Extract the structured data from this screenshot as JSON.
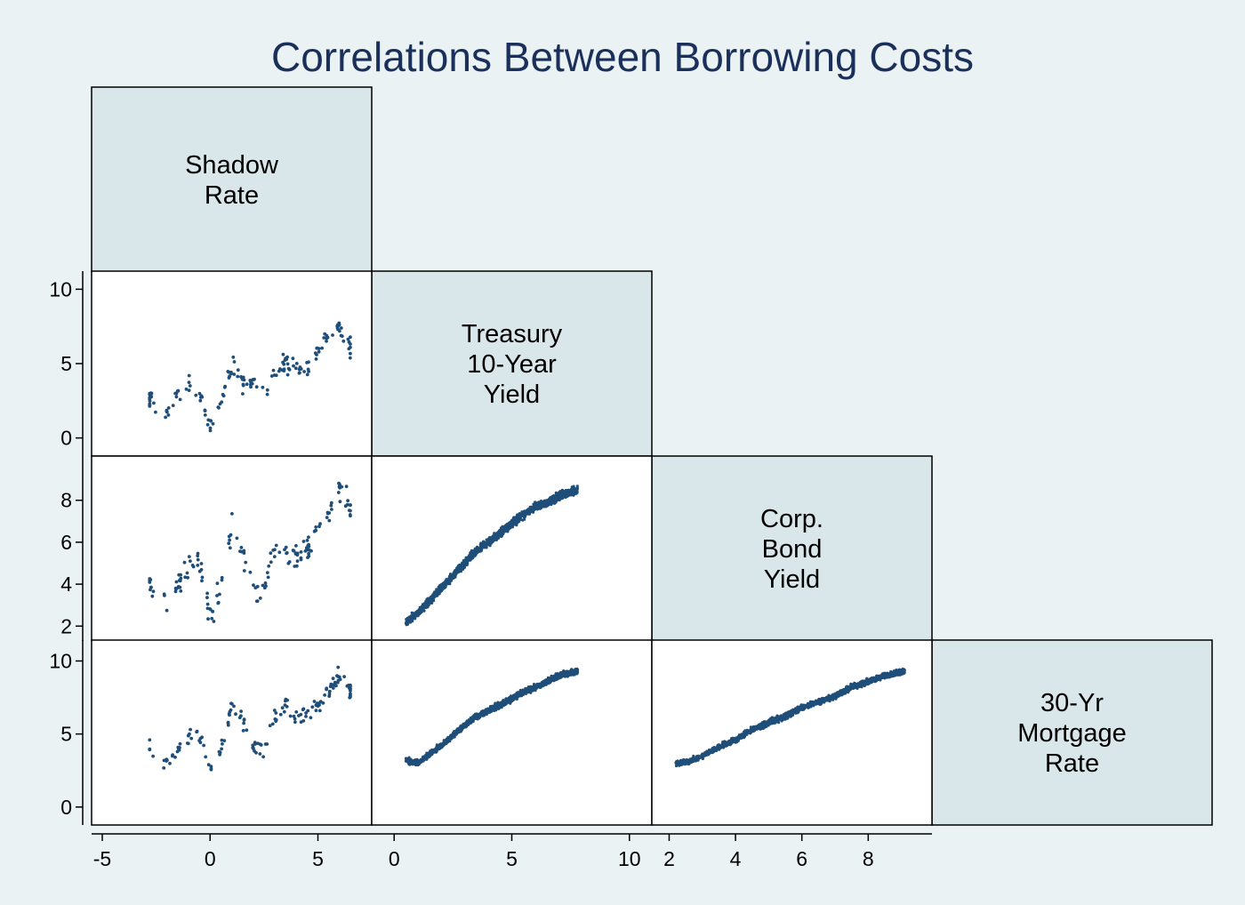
{
  "chart_data": {
    "type": "scatter",
    "kind": "scatter-matrix",
    "title": "Correlations Between Borrowing Costs",
    "variables": [
      {
        "key": "shadow",
        "label_lines": [
          "Shadow",
          "Rate"
        ],
        "range": [
          -5,
          7
        ]
      },
      {
        "key": "treasury",
        "label_lines": [
          "Treasury",
          "10-Year",
          "Yield"
        ],
        "range": [
          -0.5,
          10.5
        ]
      },
      {
        "key": "corp",
        "label_lines": [
          "Corp.",
          "Bond",
          "Yield"
        ],
        "range": [
          1.8,
          9.6
        ]
      },
      {
        "key": "mortgage",
        "label_lines": [
          "30-Yr",
          "Mortgage",
          "Rate"
        ],
        "range": [
          -0.5,
          10.7
        ]
      }
    ],
    "y_ticks": {
      "treasury": [
        {
          "v": 0,
          "label": "0"
        },
        {
          "v": 5,
          "label": "5"
        },
        {
          "v": 10,
          "label": "10"
        }
      ],
      "corp": [
        {
          "v": 2,
          "label": "2"
        },
        {
          "v": 4,
          "label": "4"
        },
        {
          "v": 6,
          "label": "6"
        },
        {
          "v": 8,
          "label": "8"
        }
      ],
      "mortgage": [
        {
          "v": 0,
          "label": "0"
        },
        {
          "v": 5,
          "label": "5"
        },
        {
          "v": 10,
          "label": "10"
        }
      ]
    },
    "x_ticks": {
      "shadow": [
        {
          "v": -5,
          "label": "-5"
        },
        {
          "v": 0,
          "label": "0"
        },
        {
          "v": 5,
          "label": "5"
        }
      ],
      "treasury": [
        {
          "v": 0,
          "label": "0"
        },
        {
          "v": 5,
          "label": "5"
        },
        {
          "v": 10,
          "label": "10"
        }
      ],
      "corp": [
        {
          "v": 2,
          "label": "2"
        },
        {
          "v": 4,
          "label": "4"
        },
        {
          "v": 6,
          "label": "6"
        },
        {
          "v": 8,
          "label": "8"
        }
      ]
    },
    "point_color": "#1f4e79",
    "diag_fill": "#d9e6ea",
    "background": "#eaf2f3",
    "title_color": "#1a2f5a",
    "trend_points": {
      "shadow": [
        -2.8,
        -2.0,
        -1.5,
        -1.0,
        -0.5,
        0.0,
        0.5,
        1.0,
        1.5,
        2.0,
        2.5,
        3.0,
        3.5,
        4.0,
        4.5,
        5.0,
        5.5,
        6.0,
        6.5
      ],
      "treasury": [
        2.4,
        1.8,
        2.2,
        3.0,
        2.8,
        1.0,
        2.6,
        3.6,
        4.2,
        3.8,
        2.6,
        4.4,
        4.6,
        4.8,
        5.0,
        5.2,
        6.0,
        6.6,
        6.2
      ]
    },
    "series": [
      {
        "name": "",
        "x": "shadow",
        "y": "treasury",
        "n": 160,
        "sample": [
          [
            -2.8,
            2.6
          ],
          [
            -2.0,
            1.6
          ],
          [
            -1.5,
            3.2
          ],
          [
            -1.0,
            3.4
          ],
          [
            -0.5,
            2.8
          ],
          [
            0.0,
            0.8
          ],
          [
            0.5,
            2.4
          ],
          [
            1.0,
            4.8
          ],
          [
            1.5,
            3.6
          ],
          [
            2.0,
            3.8
          ],
          [
            2.5,
            2.6
          ],
          [
            3.0,
            4.6
          ],
          [
            3.5,
            5.1
          ],
          [
            4.0,
            4.4
          ],
          [
            4.5,
            4.8
          ],
          [
            5.0,
            6.0
          ],
          [
            5.5,
            6.8
          ],
          [
            6.0,
            7.4
          ],
          [
            6.5,
            6.1
          ]
        ]
      },
      {
        "name": "",
        "x": "shadow",
        "y": "corp",
        "n": 160,
        "sample": [
          [
            -2.8,
            4.2
          ],
          [
            -2.0,
            2.8
          ],
          [
            -1.5,
            4.0
          ],
          [
            -1.0,
            5.0
          ],
          [
            -0.5,
            5.2
          ],
          [
            0.0,
            2.4
          ],
          [
            0.5,
            3.8
          ],
          [
            1.0,
            6.8
          ],
          [
            1.5,
            5.6
          ],
          [
            2.0,
            3.8
          ],
          [
            2.5,
            3.6
          ],
          [
            3.0,
            5.8
          ],
          [
            3.5,
            5.0
          ],
          [
            4.0,
            5.4
          ],
          [
            4.5,
            5.6
          ],
          [
            5.0,
            6.8
          ],
          [
            5.5,
            7.4
          ],
          [
            6.0,
            8.4
          ],
          [
            6.5,
            7.6
          ]
        ]
      },
      {
        "name": "",
        "x": "shadow",
        "y": "mortgage",
        "n": 160,
        "sample": [
          [
            -2.8,
            4.2
          ],
          [
            -2.0,
            3.0
          ],
          [
            -1.5,
            4.0
          ],
          [
            -1.0,
            4.8
          ],
          [
            -0.5,
            5.0
          ],
          [
            0.0,
            2.8
          ],
          [
            0.5,
            4.0
          ],
          [
            1.0,
            7.0
          ],
          [
            1.5,
            5.8
          ],
          [
            2.0,
            4.0
          ],
          [
            2.5,
            3.8
          ],
          [
            3.0,
            6.2
          ],
          [
            3.5,
            6.8
          ],
          [
            4.0,
            6.0
          ],
          [
            4.5,
            6.4
          ],
          [
            5.0,
            7.0
          ],
          [
            5.5,
            7.8
          ],
          [
            6.0,
            9.0
          ],
          [
            6.5,
            8.0
          ]
        ]
      },
      {
        "name": "",
        "x": "treasury",
        "y": "corp",
        "n": 1700,
        "sample": [
          [
            0.5,
            2.2
          ],
          [
            1.0,
            2.6
          ],
          [
            1.5,
            3.2
          ],
          [
            2.0,
            3.8
          ],
          [
            2.5,
            4.4
          ],
          [
            3.0,
            5.0
          ],
          [
            3.5,
            5.6
          ],
          [
            4.0,
            6.0
          ],
          [
            4.5,
            6.4
          ],
          [
            5.0,
            6.9
          ],
          [
            5.5,
            7.3
          ],
          [
            6.0,
            7.7
          ],
          [
            6.5,
            7.9
          ],
          [
            7.0,
            8.2
          ],
          [
            7.8,
            8.5
          ]
        ]
      },
      {
        "name": "",
        "x": "treasury",
        "y": "mortgage",
        "n": 1700,
        "sample": [
          [
            0.5,
            3.2
          ],
          [
            1.0,
            3.0
          ],
          [
            1.5,
            3.6
          ],
          [
            2.0,
            4.2
          ],
          [
            2.5,
            4.9
          ],
          [
            3.0,
            5.6
          ],
          [
            3.5,
            6.2
          ],
          [
            4.0,
            6.6
          ],
          [
            4.5,
            7.0
          ],
          [
            5.0,
            7.4
          ],
          [
            5.5,
            7.9
          ],
          [
            6.0,
            8.2
          ],
          [
            6.5,
            8.6
          ],
          [
            7.0,
            9.0
          ],
          [
            7.8,
            9.3
          ]
        ]
      },
      {
        "name": "",
        "x": "corp",
        "y": "mortgage",
        "n": 1700,
        "sample": [
          [
            2.2,
            3.0
          ],
          [
            2.6,
            3.1
          ],
          [
            3.0,
            3.5
          ],
          [
            3.5,
            4.1
          ],
          [
            4.0,
            4.6
          ],
          [
            4.5,
            5.3
          ],
          [
            5.0,
            5.8
          ],
          [
            5.5,
            6.2
          ],
          [
            6.0,
            6.8
          ],
          [
            6.5,
            7.2
          ],
          [
            7.0,
            7.6
          ],
          [
            7.5,
            8.2
          ],
          [
            8.0,
            8.6
          ],
          [
            8.5,
            9.0
          ],
          [
            9.1,
            9.3
          ]
        ]
      }
    ]
  }
}
